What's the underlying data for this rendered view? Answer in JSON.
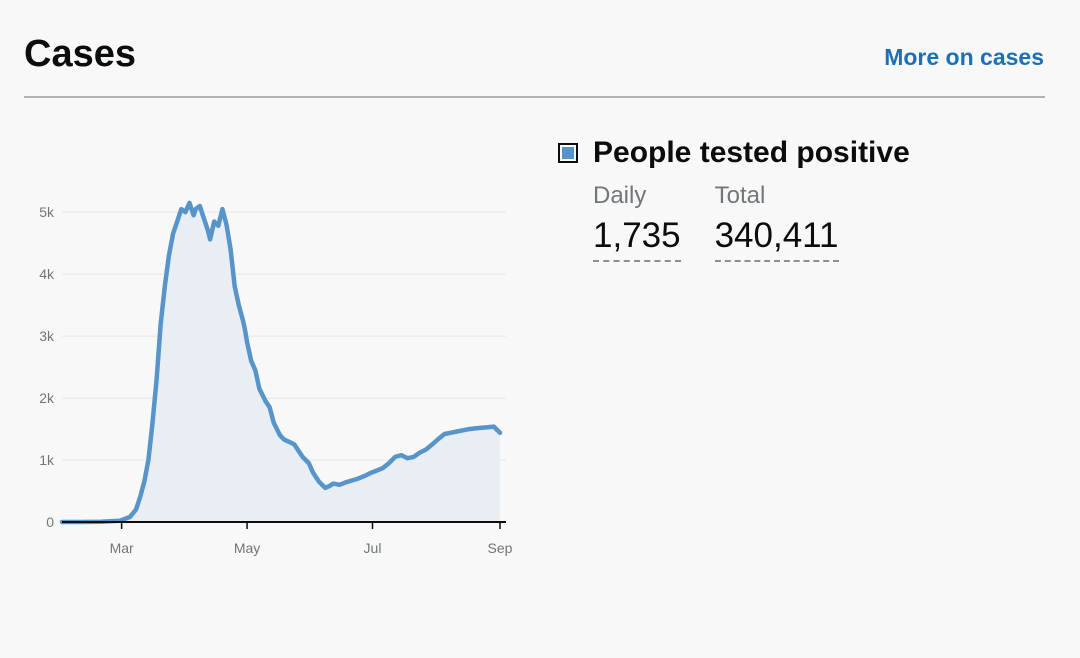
{
  "header": {
    "title": "Cases",
    "more_link": "More on cases"
  },
  "legend": {
    "label": "People tested positive",
    "swatch_color": "#5694ca",
    "daily_label": "Daily",
    "daily_value": "1,735",
    "total_label": "Total",
    "total_value": "340,411"
  },
  "chart_data": {
    "type": "area",
    "title": "",
    "xlabel": "",
    "ylabel": "",
    "x": [
      "2020-02-01",
      "2020-02-10",
      "2020-02-20",
      "2020-02-29",
      "2020-03-05",
      "2020-03-08",
      "2020-03-10",
      "2020-03-12",
      "2020-03-14",
      "2020-03-16",
      "2020-03-18",
      "2020-03-20",
      "2020-03-22",
      "2020-03-24",
      "2020-03-26",
      "2020-03-28",
      "2020-03-30",
      "2020-04-01",
      "2020-04-03",
      "2020-04-05",
      "2020-04-06",
      "2020-04-08",
      "2020-04-09",
      "2020-04-10",
      "2020-04-12",
      "2020-04-13",
      "2020-04-15",
      "2020-04-17",
      "2020-04-19",
      "2020-04-21",
      "2020-04-23",
      "2020-04-25",
      "2020-04-27",
      "2020-04-29",
      "2020-04-30",
      "2020-05-01",
      "2020-05-03",
      "2020-05-05",
      "2020-05-07",
      "2020-05-10",
      "2020-05-12",
      "2020-05-14",
      "2020-05-17",
      "2020-05-19",
      "2020-05-21",
      "2020-05-24",
      "2020-05-26",
      "2020-05-28",
      "2020-05-31",
      "2020-06-02",
      "2020-06-05",
      "2020-06-08",
      "2020-06-10",
      "2020-06-12",
      "2020-06-15",
      "2020-06-18",
      "2020-06-21",
      "2020-06-24",
      "2020-06-27",
      "2020-06-30",
      "2020-07-03",
      "2020-07-06",
      "2020-07-09",
      "2020-07-12",
      "2020-07-15",
      "2020-07-18",
      "2020-07-21",
      "2020-07-24",
      "2020-07-27",
      "2020-07-30",
      "2020-08-02",
      "2020-08-05",
      "2020-08-08",
      "2020-08-11",
      "2020-08-14",
      "2020-08-17",
      "2020-08-20",
      "2020-08-23",
      "2020-08-26",
      "2020-08-29",
      "2020-09-01"
    ],
    "series": [
      {
        "values": [
          0,
          0,
          5,
          20,
          80,
          200,
          400,
          650,
          1000,
          1600,
          2300,
          3200,
          3800,
          4300,
          4650,
          4850,
          5050,
          5000,
          5150,
          4950,
          5050,
          5100,
          5000,
          4900,
          4700,
          4560,
          4850,
          4780,
          5050,
          4800,
          4400,
          3800,
          3500,
          3250,
          3100,
          2900,
          2600,
          2450,
          2150,
          1950,
          1850,
          1600,
          1400,
          1330,
          1300,
          1250,
          1150,
          1050,
          950,
          800,
          650,
          550,
          580,
          620,
          600,
          640,
          670,
          700,
          740,
          790,
          830,
          870,
          950,
          1050,
          1080,
          1030,
          1050,
          1120,
          1170,
          1250,
          1340,
          1420,
          1440,
          1460,
          1480,
          1500,
          1510,
          1520,
          1530,
          1540,
          1440
        ],
        "color": "#5694ca"
      }
    ],
    "y_ticks": [
      "0",
      "1k",
      "2k",
      "3k",
      "4k",
      "5k"
    ],
    "y_tick_values": [
      0,
      1000,
      2000,
      3000,
      4000,
      5000
    ],
    "ylim": [
      0,
      5600
    ],
    "x_ticks": [
      "Mar",
      "May",
      "Jul",
      "Sep"
    ],
    "x_tick_dates": [
      "2020-03-01",
      "2020-05-01",
      "2020-07-01",
      "2020-09-01"
    ],
    "xlim": [
      "2020-02-01",
      "2020-09-01"
    ],
    "grid": true,
    "fill_color": "#e8eef4"
  }
}
